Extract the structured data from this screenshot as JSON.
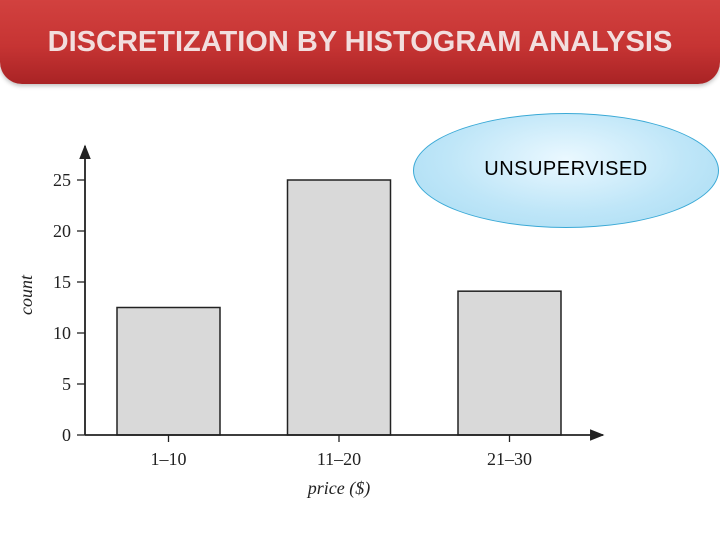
{
  "slide": {
    "title": "DISCRETIZATION BY HISTOGRAM ANALYSIS",
    "badge": "UNSUPERVISED"
  },
  "colors": {
    "banner": "#c63433",
    "bar_fill": "#d9d9d9",
    "badge_fill": "#bfe6f8"
  },
  "chart_data": {
    "type": "bar",
    "categories": [
      "1–10",
      "11–20",
      "21–30"
    ],
    "values": [
      12.5,
      25,
      14.1
    ],
    "xlabel": "price ($)",
    "ylabel": "count",
    "yticks": [
      "0",
      "5",
      "10",
      "15",
      "20",
      "25"
    ],
    "ylim": [
      0,
      25
    ],
    "grid": false,
    "legend": "none"
  }
}
